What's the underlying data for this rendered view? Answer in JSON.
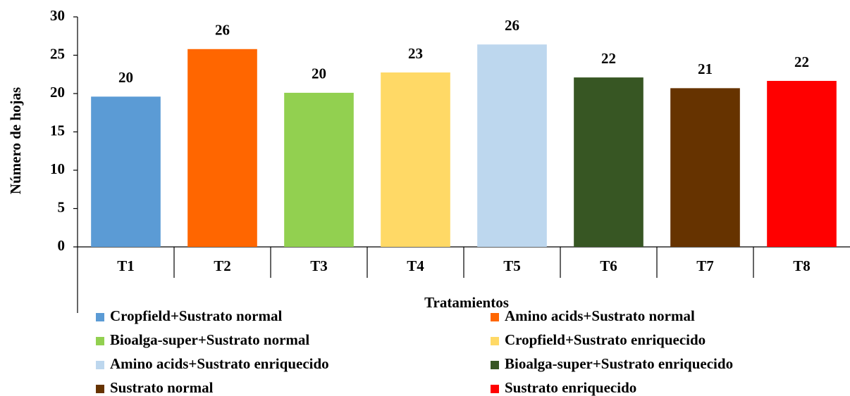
{
  "chart_data": {
    "type": "bar",
    "y_label": "Número de hojas",
    "x_label": "Tratamientos",
    "categories": [
      "T1",
      "T2",
      "T3",
      "T4",
      "T5",
      "T6",
      "T7",
      "T8"
    ],
    "values": [
      19.6,
      25.8,
      20.1,
      22.75,
      26.4,
      22.1,
      20.7,
      21.65
    ],
    "value_labels": [
      "20",
      "26",
      "20",
      "23",
      "26",
      "22",
      "21",
      "22"
    ],
    "colors": [
      "#5b9bd5",
      "#ff6600",
      "#92d050",
      "#ffd966",
      "#bdd7ee",
      "#375623",
      "#663300",
      "#ff0000"
    ],
    "legend": [
      "Cropfield+Sustrato normal",
      "Amino acids+Sustrato normal",
      "Bioalga-super+Sustrato normal",
      "Cropfield+Sustrato enriquecido",
      "Amino acids+Sustrato enriquecido",
      "Bioalga-super+Sustrato enriquecido",
      "Sustrato normal",
      "Sustrato enriquecido"
    ],
    "ylim": [
      0,
      30
    ],
    "yticks": [
      0,
      5,
      10,
      15,
      20,
      25,
      30
    ],
    "grid": false
  }
}
